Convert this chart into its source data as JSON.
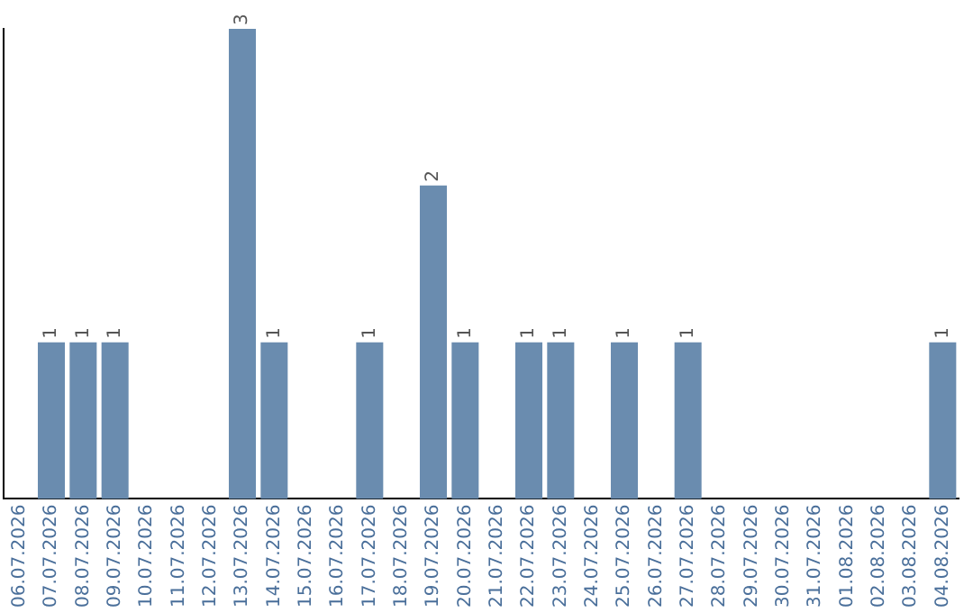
{
  "chart_data": {
    "type": "bar",
    "categories": [
      "06.07.2026",
      "07.07.2026",
      "08.07.2026",
      "09.07.2026",
      "10.07.2026",
      "11.07.2026",
      "12.07.2026",
      "13.07.2026",
      "14.07.2026",
      "15.07.2026",
      "16.07.2026",
      "17.07.2026",
      "18.07.2026",
      "19.07.2026",
      "20.07.2026",
      "21.07.2026",
      "22.07.2026",
      "23.07.2026",
      "24.07.2026",
      "25.07.2026",
      "26.07.2026",
      "27.07.2026",
      "28.07.2026",
      "29.07.2026",
      "30.07.2026",
      "31.07.2026",
      "01.08.2026",
      "02.08.2026",
      "03.08.2026",
      "04.08.2026"
    ],
    "values": [
      0,
      1,
      1,
      1,
      0,
      0,
      0,
      3,
      1,
      0,
      0,
      1,
      0,
      2,
      1,
      0,
      1,
      1,
      0,
      1,
      0,
      1,
      0,
      0,
      0,
      0,
      0,
      0,
      0,
      1
    ],
    "value_labels": [
      null,
      "1",
      "1",
      "1",
      null,
      null,
      null,
      "3",
      "1",
      null,
      null,
      "1",
      null,
      "2",
      "1",
      null,
      "1",
      "1",
      null,
      "1",
      null,
      "1",
      null,
      null,
      null,
      null,
      null,
      null,
      null,
      "1"
    ],
    "color": "#6a8caf",
    "tick_labels": "x",
    "grid": false,
    "legend": false
  }
}
